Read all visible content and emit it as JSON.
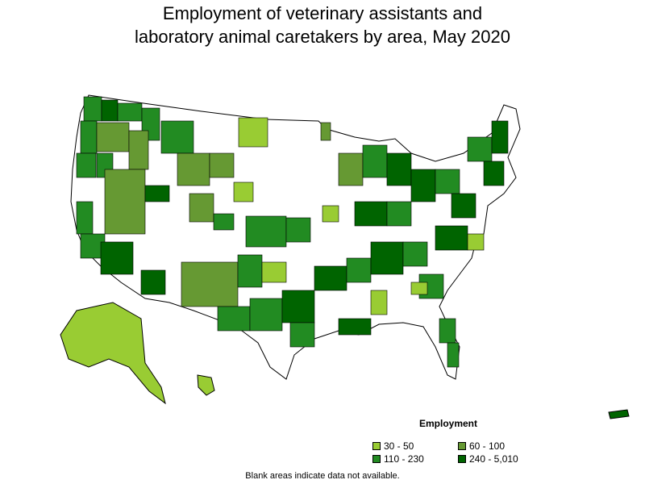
{
  "title": {
    "line1": "Employment of veterinary assistants and",
    "line2": "laboratory animal caretakers by area, May 2020"
  },
  "legend": {
    "title": "Employment",
    "items": [
      {
        "label": "30 - 50",
        "color": "#99cc33"
      },
      {
        "label": "60 - 100",
        "color": "#669933"
      },
      {
        "label": "110 - 230",
        "color": "#228b22"
      },
      {
        "label": "240 - 5,010",
        "color": "#006400"
      }
    ]
  },
  "note": "Blank areas indicate data not available.",
  "colors": {
    "c1": "#99cc33",
    "c2": "#669933",
    "c3": "#228b22",
    "c4": "#006400",
    "blank": "#ffffff",
    "border": "#000000"
  }
}
